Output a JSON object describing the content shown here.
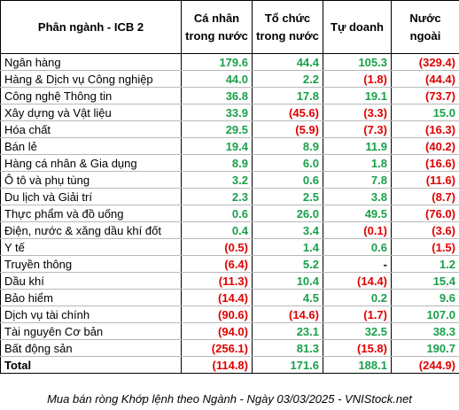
{
  "header": {
    "sector": "Phân ngành - ICB 2",
    "individual": "Cá nhân trong nước",
    "institution": "Tổ chức trong nước",
    "proprietary": "Tự doanh",
    "foreign": "Nước ngoài"
  },
  "rows": [
    {
      "name": "Ngân hàng",
      "v": [
        "179.6",
        "44.4",
        "105.3",
        "(329.4)"
      ]
    },
    {
      "name": "Hàng & Dịch vụ Công nghiệp",
      "v": [
        "44.0",
        "2.2",
        "(1.8)",
        "(44.4)"
      ]
    },
    {
      "name": "Công nghệ Thông tin",
      "v": [
        "36.8",
        "17.8",
        "19.1",
        "(73.7)"
      ]
    },
    {
      "name": "Xây dựng và Vật liệu",
      "v": [
        "33.9",
        "(45.6)",
        "(3.3)",
        "15.0"
      ]
    },
    {
      "name": "Hóa chất",
      "v": [
        "29.5",
        "(5.9)",
        "(7.3)",
        "(16.3)"
      ]
    },
    {
      "name": "Bán lẻ",
      "v": [
        "19.4",
        "8.9",
        "11.9",
        "(40.2)"
      ]
    },
    {
      "name": "Hàng cá nhân & Gia dụng",
      "v": [
        "8.9",
        "6.0",
        "1.8",
        "(16.6)"
      ]
    },
    {
      "name": "Ô tô và phụ tùng",
      "v": [
        "3.2",
        "0.6",
        "7.8",
        "(11.6)"
      ]
    },
    {
      "name": "Du lịch và Giải trí",
      "v": [
        "2.3",
        "2.5",
        "3.8",
        "(8.7)"
      ]
    },
    {
      "name": "Thực phẩm và đồ uống",
      "v": [
        "0.6",
        "26.0",
        "49.5",
        "(76.0)"
      ]
    },
    {
      "name": "Điện, nước & xăng dầu khí đốt",
      "v": [
        "0.4",
        "3.4",
        "(0.1)",
        "(3.6)"
      ]
    },
    {
      "name": "Y tế",
      "v": [
        "(0.5)",
        "1.4",
        "0.6",
        "(1.5)"
      ]
    },
    {
      "name": "Truyền thông",
      "v": [
        "(6.4)",
        "5.2",
        "-",
        "1.2"
      ]
    },
    {
      "name": "Dầu khí",
      "v": [
        "(11.3)",
        "10.4",
        "(14.4)",
        "15.4"
      ]
    },
    {
      "name": "Bảo hiểm",
      "v": [
        "(14.4)",
        "4.5",
        "0.2",
        "9.6"
      ]
    },
    {
      "name": "Dịch vụ tài chính",
      "v": [
        "(90.6)",
        "(14.6)",
        "(1.7)",
        "107.0"
      ]
    },
    {
      "name": "Tài nguyên Cơ bản",
      "v": [
        "(94.0)",
        "23.1",
        "32.5",
        "38.3"
      ]
    },
    {
      "name": "Bất động sản",
      "v": [
        "(256.1)",
        "81.3",
        "(15.8)",
        "190.7"
      ]
    }
  ],
  "total": {
    "name": "Total",
    "v": [
      "(114.8)",
      "171.6",
      "188.1",
      "(244.9)"
    ]
  },
  "caption": "Mua bán ròng Khớp lệnh theo Ngành - Ngày 03/03/2025 - VNIStock.net",
  "colors": {
    "positive": "#1aa04a",
    "negative": "#e00000"
  }
}
